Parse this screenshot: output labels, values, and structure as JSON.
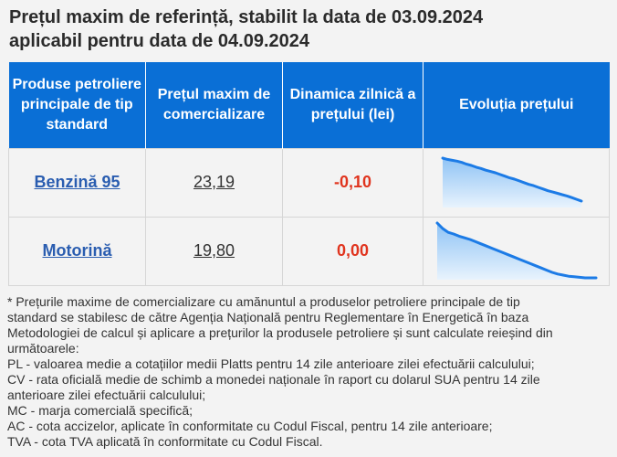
{
  "title": {
    "line1": "Prețul maxim de referință, stabilit la data de 03.09.2024",
    "line2": "aplicabil pentru data de 04.09.2024"
  },
  "table": {
    "headers": {
      "product": "Produse petroliere principale de tip standard",
      "price": "Prețul maxim de comercializare",
      "change": "Dinamica zilnică a prețului (lei)",
      "evolution": "Evoluția prețului"
    },
    "rows": [
      {
        "product": "Benzină 95",
        "price": "23,19",
        "change": "-0,10",
        "trend": [
          1.0,
          0.97,
          0.95,
          0.93,
          0.9,
          0.86,
          0.83,
          0.79,
          0.76,
          0.72,
          0.69,
          0.66,
          0.62,
          0.58,
          0.54,
          0.51,
          0.47,
          0.43,
          0.39,
          0.36,
          0.32,
          0.28,
          0.24,
          0.21,
          0.18,
          0.15,
          0.12,
          0.08,
          0.04,
          0.0
        ]
      },
      {
        "product": "Motorină",
        "price": "19,80",
        "change": "0,00",
        "trend": [
          1.0,
          0.9,
          0.83,
          0.8,
          0.76,
          0.73,
          0.7,
          0.66,
          0.62,
          0.58,
          0.54,
          0.5,
          0.46,
          0.42,
          0.38,
          0.34,
          0.3,
          0.26,
          0.22,
          0.18,
          0.14,
          0.1,
          0.07,
          0.05,
          0.03,
          0.02,
          0.01,
          0.0,
          0.0,
          0.0
        ]
      }
    ]
  },
  "notes": {
    "line1": "* Prețurile maxime de comercializare cu amănuntul a produselor petroliere principale de tip",
    "line2": "standard se stabilesc de către Agenția Națională pentru Reglementare în Energetică în baza",
    "line3": "Metodologiei de calcul și aplicare a prețurilor la produsele petroliere și sunt calculate reieșind din",
    "line4": "următoarele:",
    "line5": "PL - valoarea medie a cotațiilor medii Platts pentru 14 zile anterioare zilei efectuării calculului;",
    "line6": "CV - rata oficială medie de schimb a monedei naționale în raport cu dolarul SUA pentru 14 zile",
    "line7": "anterioare zilei efectuării calculului;",
    "line8": "MC - marja comercială specifică;",
    "line9": "AC - cota accizelor, aplicate în conformitate cu Codul Fiscal, pentru 14 zile anterioare;",
    "line10": "TVA - cota TVA aplicată în conformitate cu Codul Fiscal."
  },
  "colors": {
    "header_bg": "#0a6fd6",
    "link": "#2a5db0",
    "change": "#e0341e",
    "spark_line": "#1c7be6",
    "spark_fill_top": "#8fc3f5",
    "spark_fill_bottom": "#e8f3fd"
  }
}
